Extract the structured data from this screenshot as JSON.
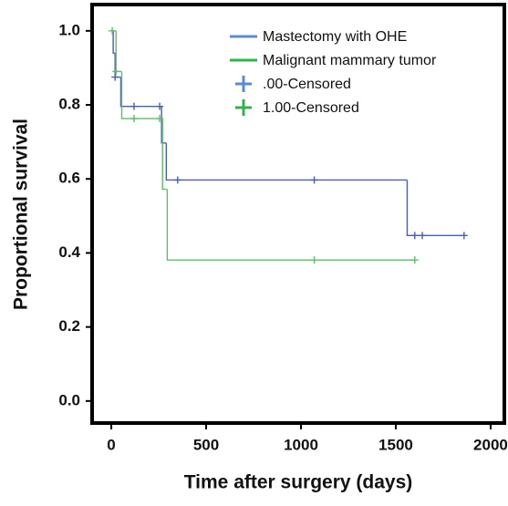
{
  "chart_data": {
    "type": "step",
    "x_label": "Time after surgery (days)",
    "y_label": "Proportional  survival",
    "xlim": [
      -106,
      2082
    ],
    "ylim": [
      -0.062,
      1.071
    ],
    "xticks": [
      0,
      500,
      1000,
      1500,
      2000
    ],
    "yticks": [
      {
        "value": 0,
        "label": "0.0"
      },
      0.2,
      0.4,
      0.6,
      0.8,
      {
        "value": 1,
        "label": "1.0"
      }
    ],
    "legend": "top-right",
    "series": [
      {
        "name": "Mastectomy with OHE",
        "color": "#4a5fa8",
        "legend_color": "#5b8bd0",
        "kind": "line",
        "x": [
          0,
          10,
          20,
          50,
          265,
          290,
          1560,
          1860
        ],
        "values": [
          1,
          0.94,
          0.875,
          0.796,
          0.697,
          0.597,
          0.447,
          0.447
        ]
      },
      {
        "name": "Malignant mammary tumor",
        "color": "#5cbf6a",
        "legend_color": "#2fb34a",
        "kind": "line",
        "x": [
          0,
          25,
          55,
          270,
          295,
          1600
        ],
        "values": [
          1,
          0.89,
          0.763,
          0.572,
          0.381,
          0.381
        ]
      },
      {
        "name": ".00-Censored",
        "color": "#4a5fa8",
        "legend_color": "#5b8bd0",
        "kind": "censored",
        "x": [
          20,
          120,
          255,
          350,
          1070,
          1600,
          1640,
          1860
        ],
        "values": [
          0.875,
          0.796,
          0.796,
          0.597,
          0.597,
          0.447,
          0.447,
          0.447
        ]
      },
      {
        "name": "1.00-Censored",
        "color": "#5cbf6a",
        "legend_color": "#2fb34a",
        "kind": "censored",
        "x": [
          5,
          25,
          120,
          255,
          1070,
          1600
        ],
        "values": [
          1,
          0.89,
          0.763,
          0.763,
          0.381,
          0.381
        ]
      }
    ]
  }
}
